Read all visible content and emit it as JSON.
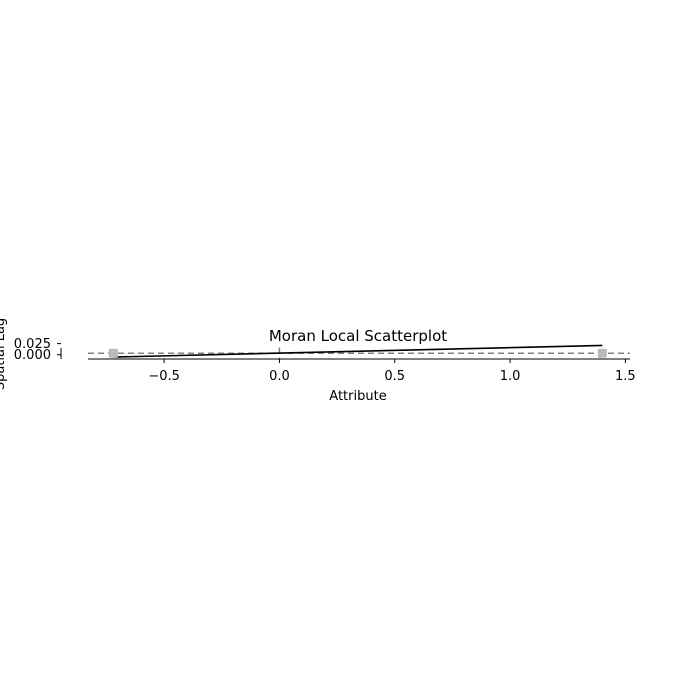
{
  "chart_data": {
    "type": "scatter",
    "title": "Moran Local Scatterplot",
    "xlabel": "Attribute",
    "ylabel": "Spatial Lag",
    "xlim": [
      -0.83,
      1.52
    ],
    "ylim": [
      -0.018,
      0.03
    ],
    "x_ticks": [
      -0.5,
      0.0,
      0.5,
      1.0,
      1.5
    ],
    "x_tick_labels": [
      "−0.5",
      "0.0",
      "0.5",
      "1.0",
      "1.5"
    ],
    "y_ticks": [
      0.0,
      0.025
    ],
    "y_tick_labels": [
      "0.000",
      "0.025"
    ],
    "grid": false,
    "reference_lines": {
      "x": 0.0,
      "y": 0.0,
      "style": "dashed",
      "color": "#808080"
    },
    "points": [
      {
        "x": -0.72,
        "y": 0.0
      },
      {
        "x": 1.4,
        "y": 0.0
      }
    ],
    "point_color": "#bababa",
    "fit_line": {
      "x": [
        -0.72,
        1.4
      ],
      "y": [
        -0.012,
        0.024
      ],
      "color": "#000000"
    }
  }
}
